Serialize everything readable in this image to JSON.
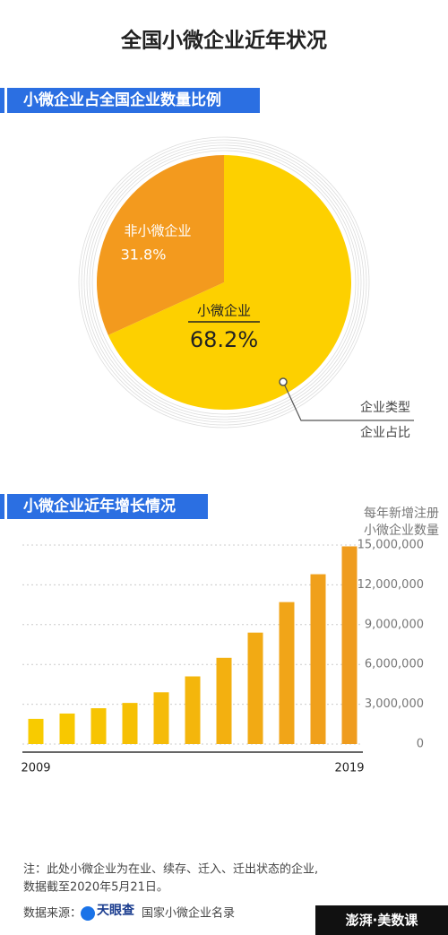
{
  "title": "全国小微企业近年状况",
  "chart_data": [
    {
      "type": "pie",
      "title": "小微企业占全国企业数量比例",
      "categories": [
        "小微企业",
        "非小微企业"
      ],
      "values": [
        68.2,
        31.8
      ],
      "value_labels": [
        "68.2%",
        "31.8%"
      ],
      "colors": [
        "#fdd000",
        "#f39a1e"
      ],
      "annotation": [
        "企业类型",
        "企业占比"
      ]
    },
    {
      "type": "bar",
      "title": "小微企业近年增长情况",
      "ylabel": [
        "每年新增注册",
        "小微企业数量"
      ],
      "categories": [
        "2009",
        null,
        null,
        null,
        null,
        null,
        null,
        null,
        null,
        null,
        "2019"
      ],
      "values": [
        1900000,
        2300000,
        2700000,
        3100000,
        3900000,
        5100000,
        6500000,
        8400000,
        10700000,
        12800000,
        14900000
      ],
      "colors": [
        "#f8cb00",
        "#f8c800",
        "#f7c402",
        "#f6c004",
        "#f5bb08",
        "#f4b60c",
        "#f3b010",
        "#f2aa14",
        "#f1a518",
        "#f0a01b",
        "#ef9c1e"
      ],
      "ylim": [
        0,
        15000000
      ],
      "yticks": [
        0,
        {
          "value": 3000000,
          "label": "3,000,000"
        },
        {
          "value": 6000000,
          "label": "6,000,000"
        },
        {
          "value": 9000000,
          "label": "9,000,000"
        },
        {
          "value": 12000000,
          "label": "12,000,000"
        },
        {
          "value": 15000000,
          "label": "15,000,000"
        }
      ],
      "grid": true
    }
  ],
  "note": [
    "注：此处小微企业为在业、续存、迁入、迁出状态的企业,",
    "数据截至2020年5月21日。"
  ],
  "source": {
    "label": "数据来源：",
    "provider": "天眼查",
    "name": "国家小微企业名录"
  },
  "brand": "澎湃·美数课"
}
